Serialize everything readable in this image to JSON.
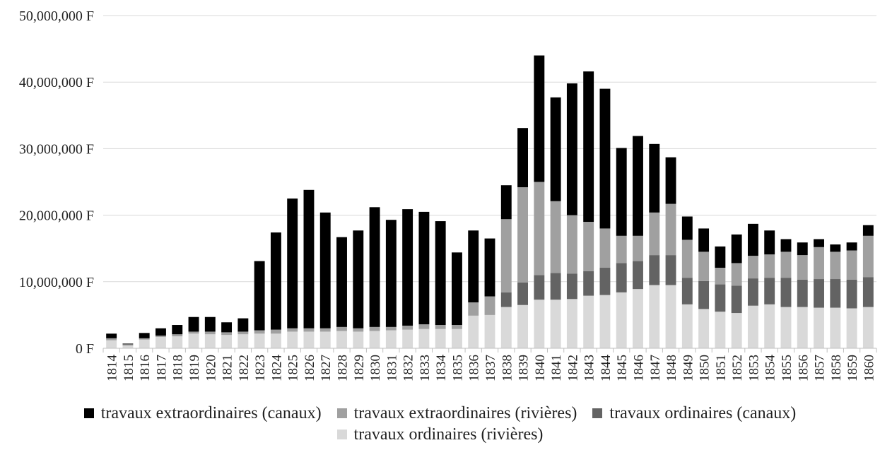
{
  "chart_data": {
    "type": "bar",
    "stacked": true,
    "title": "",
    "xlabel": "",
    "ylabel": "",
    "ylim": [
      0,
      50000000
    ],
    "yticks": [
      0,
      10000000,
      20000000,
      30000000,
      40000000,
      50000000
    ],
    "ytick_labels": [
      "0 F",
      "10,000,000 F",
      "20,000,000 F",
      "30,000,000 F",
      "40,000,000 F",
      "50,000,000 F"
    ],
    "grid": "horizontal",
    "legend_position": "bottom",
    "categories": [
      "1814",
      "1815",
      "1816",
      "1817",
      "1818",
      "1819",
      "1820",
      "1821",
      "1822",
      "1823",
      "1824",
      "1825",
      "1826",
      "1827",
      "1828",
      "1829",
      "1830",
      "1831",
      "1832",
      "1833",
      "1834",
      "1835",
      "1836",
      "1837",
      "1838",
      "1839",
      "1840",
      "1841",
      "1842",
      "1843",
      "1844",
      "1845",
      "1846",
      "1847",
      "1848",
      "1849",
      "1850",
      "1851",
      "1852",
      "1853",
      "1854",
      "1855",
      "1856",
      "1857",
      "1858",
      "1859",
      "1860"
    ],
    "series": [
      {
        "name": "travaux ordinaires (rivières)",
        "color": "#d9d9d9",
        "values": [
          1200000,
          400000,
          1300000,
          1700000,
          1800000,
          2200000,
          2100000,
          2000000,
          2100000,
          2200000,
          2200000,
          2500000,
          2500000,
          2500000,
          2600000,
          2500000,
          2600000,
          2700000,
          2800000,
          2900000,
          2900000,
          2900000,
          4900000,
          5000000,
          6200000,
          6500000,
          7300000,
          7300000,
          7400000,
          7900000,
          8000000,
          8400000,
          8900000,
          9500000,
          9500000,
          6600000,
          5900000,
          5500000,
          5300000,
          6400000,
          6600000,
          6200000,
          6200000,
          6100000,
          6100000,
          6000000,
          6200000
        ]
      },
      {
        "name": "travaux ordinaires (canaux)",
        "color": "#636363",
        "values": [
          0,
          0,
          0,
          0,
          0,
          0,
          0,
          0,
          0,
          0,
          0,
          0,
          0,
          0,
          0,
          0,
          0,
          0,
          0,
          0,
          0,
          0,
          0,
          0,
          2200000,
          3400000,
          3700000,
          4000000,
          3800000,
          3700000,
          4100000,
          4400000,
          4200000,
          4500000,
          4500000,
          4000000,
          4200000,
          4100000,
          4100000,
          4100000,
          4000000,
          4400000,
          4100000,
          4300000,
          4300000,
          4300000,
          4500000
        ]
      },
      {
        "name": "travaux extraordinaires (rivières)",
        "color": "#a0a0a0",
        "values": [
          300000,
          200000,
          200000,
          200000,
          300000,
          300000,
          400000,
          400000,
          400000,
          500000,
          600000,
          500000,
          500000,
          500000,
          600000,
          500000,
          600000,
          500000,
          600000,
          700000,
          600000,
          600000,
          2000000,
          2800000,
          11000000,
          14300000,
          14000000,
          10800000,
          8800000,
          7400000,
          5900000,
          4100000,
          3800000,
          6400000,
          7700000,
          5700000,
          4400000,
          2500000,
          3400000,
          3400000,
          3500000,
          3900000,
          3700000,
          4800000,
          4100000,
          4400000,
          6200000
        ]
      },
      {
        "name": "travaux extraordinaires (canaux)",
        "color": "#000000",
        "values": [
          700000,
          100000,
          800000,
          1100000,
          1400000,
          2200000,
          2200000,
          1500000,
          2000000,
          10400000,
          14600000,
          19500000,
          20800000,
          17400000,
          13500000,
          14700000,
          18000000,
          16100000,
          17500000,
          16900000,
          15600000,
          10900000,
          10800000,
          8700000,
          5100000,
          8900000,
          19000000,
          15600000,
          19800000,
          22600000,
          21000000,
          13200000,
          15000000,
          10300000,
          7000000,
          3500000,
          3500000,
          3200000,
          4300000,
          4800000,
          3600000,
          1900000,
          1900000,
          1200000,
          1100000,
          1200000,
          1600000
        ]
      }
    ],
    "legend_order": [
      "travaux extraordinaires (canaux)",
      "travaux extraordinaires (rivières)",
      "travaux ordinaires (canaux)",
      "travaux ordinaires (rivières)"
    ]
  },
  "legend": {
    "row1": [
      {
        "label": "travaux extraordinaires (canaux)",
        "color": "#000000"
      },
      {
        "label": "travaux extraordinaires (rivières)",
        "color": "#a0a0a0"
      },
      {
        "label": "travaux ordinaires (canaux)",
        "color": "#636363"
      }
    ],
    "row2": [
      {
        "label": "travaux ordinaires (rivières)",
        "color": "#d9d9d9"
      }
    ]
  }
}
